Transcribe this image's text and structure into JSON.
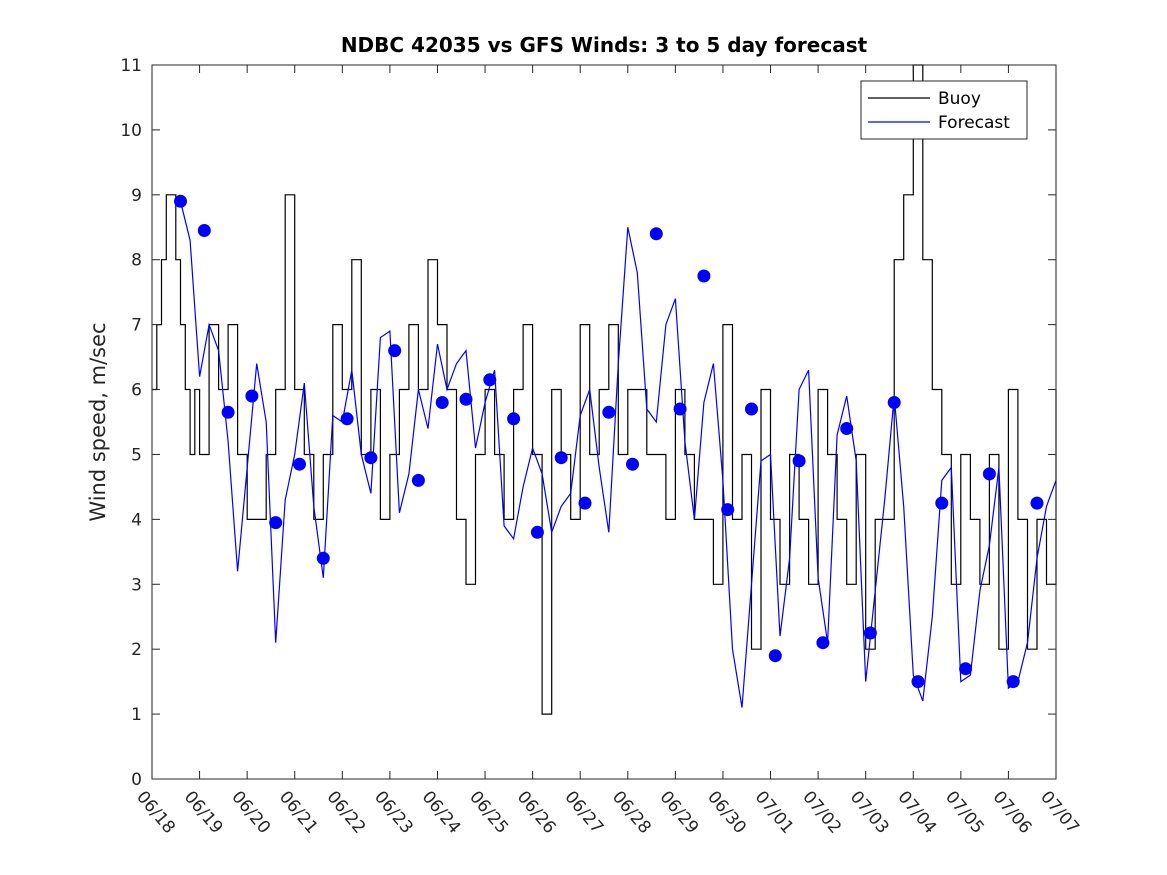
{
  "chart_data": {
    "type": "line",
    "title": "NDBC 42035 vs GFS Winds: 3 to 5 day forecast",
    "xlabel": "",
    "ylabel": "Wind speed, m/sec",
    "xlim": [
      0,
      19
    ],
    "ylim": [
      0,
      11
    ],
    "x_ticks": [
      0,
      1,
      2,
      3,
      4,
      5,
      6,
      7,
      8,
      9,
      10,
      11,
      12,
      13,
      14,
      15,
      16,
      17,
      18,
      19
    ],
    "x_tick_labels": [
      "06/18",
      "06/19",
      "06/20",
      "06/21",
      "06/22",
      "06/23",
      "06/24",
      "06/25",
      "06/26",
      "06/27",
      "06/28",
      "06/29",
      "06/30",
      "07/01",
      "07/02",
      "07/03",
      "07/04",
      "07/05",
      "07/06",
      "07/07"
    ],
    "y_ticks": [
      0,
      1,
      2,
      3,
      4,
      5,
      6,
      7,
      8,
      9,
      10,
      11
    ],
    "y_tick_labels": [
      "0",
      "1",
      "2",
      "3",
      "4",
      "5",
      "6",
      "7",
      "8",
      "9",
      "10",
      "11"
    ],
    "grid": false,
    "legend": {
      "placement": "top-right",
      "entries": [
        "Buoy",
        "Forecast"
      ]
    },
    "colors": {
      "buoy": "#000000",
      "forecast": "#0000ff",
      "markers": "#0000ff"
    },
    "series": [
      {
        "name": "Buoy",
        "x": [
          0.0,
          0.1,
          0.2,
          0.3,
          0.4,
          0.5,
          0.6,
          0.7,
          0.8,
          0.9,
          1.0,
          1.2,
          1.4,
          1.6,
          1.8,
          2.0,
          2.2,
          2.4,
          2.6,
          2.8,
          3.0,
          3.2,
          3.4,
          3.6,
          3.8,
          4.0,
          4.2,
          4.4,
          4.6,
          4.8,
          5.0,
          5.2,
          5.4,
          5.6,
          5.8,
          6.0,
          6.2,
          6.4,
          6.6,
          6.8,
          7.0,
          7.2,
          7.4,
          7.6,
          7.8,
          8.0,
          8.2,
          8.4,
          8.6,
          8.8,
          9.0,
          9.2,
          9.4,
          9.6,
          9.8,
          10.0,
          10.2,
          10.4,
          10.6,
          10.8,
          11.0,
          11.2,
          11.4,
          11.6,
          11.8,
          12.0,
          12.2,
          12.4,
          12.6,
          12.8,
          13.0,
          13.2,
          13.4,
          13.6,
          13.8,
          14.0,
          14.2,
          14.4,
          14.6,
          14.8,
          15.0,
          15.2,
          15.4,
          15.6,
          15.8,
          16.0,
          16.2,
          16.4,
          16.6,
          16.8,
          17.0,
          17.2,
          17.4,
          17.6,
          17.8,
          18.0,
          18.2,
          18.4,
          18.6,
          18.8,
          19.0
        ],
        "values": [
          6,
          7,
          8,
          9,
          9,
          8,
          7,
          6,
          5,
          6,
          5,
          7,
          6,
          7,
          5,
          4,
          4,
          5,
          6,
          9,
          6,
          5,
          4,
          5,
          7,
          6,
          8,
          5,
          6,
          4,
          5,
          6,
          7,
          6,
          8,
          7,
          6,
          4,
          3,
          5,
          6,
          5,
          4,
          6,
          7,
          5,
          1,
          6,
          5,
          4,
          7,
          5,
          6,
          7,
          5,
          6,
          6,
          5,
          5,
          4,
          6,
          5,
          4,
          4,
          3,
          7,
          4,
          5,
          2,
          6,
          4,
          3,
          5,
          4,
          3,
          6,
          5,
          4,
          3,
          5,
          2,
          4,
          4,
          8,
          9,
          11,
          8,
          6,
          5,
          3,
          5,
          4,
          3,
          5,
          2,
          6,
          4,
          2,
          4,
          3,
          6
        ]
      },
      {
        "name": "Forecast",
        "x": [
          0.6,
          0.8,
          1.0,
          1.2,
          1.4,
          1.6,
          1.8,
          2.0,
          2.2,
          2.4,
          2.6,
          2.8,
          3.0,
          3.2,
          3.4,
          3.6,
          3.8,
          4.0,
          4.2,
          4.4,
          4.6,
          4.8,
          5.0,
          5.2,
          5.4,
          5.6,
          5.8,
          6.0,
          6.2,
          6.4,
          6.6,
          6.8,
          7.0,
          7.2,
          7.4,
          7.6,
          7.8,
          8.0,
          8.2,
          8.4,
          8.6,
          8.8,
          9.0,
          9.2,
          9.4,
          9.6,
          9.8,
          10.0,
          10.2,
          10.4,
          10.6,
          10.8,
          11.0,
          11.2,
          11.4,
          11.6,
          11.8,
          12.0,
          12.2,
          12.4,
          12.6,
          12.8,
          13.0,
          13.2,
          13.4,
          13.6,
          13.8,
          14.0,
          14.2,
          14.4,
          14.6,
          14.8,
          15.0,
          15.2,
          15.4,
          15.6,
          15.8,
          16.0,
          16.2,
          16.4,
          16.6,
          16.8,
          17.0,
          17.2,
          17.4,
          17.6,
          17.8,
          18.0,
          18.2,
          18.4,
          18.6,
          18.8,
          19.0
        ],
        "values": [
          8.9,
          8.3,
          6.2,
          7.0,
          6.6,
          5.2,
          3.2,
          4.8,
          6.4,
          5.5,
          2.1,
          4.3,
          5.0,
          6.1,
          4.2,
          3.1,
          5.6,
          5.5,
          6.3,
          5.0,
          4.4,
          6.8,
          6.9,
          4.1,
          4.7,
          6.0,
          5.4,
          6.7,
          6.0,
          6.4,
          6.6,
          5.1,
          5.8,
          6.3,
          3.9,
          3.7,
          4.5,
          5.1,
          4.7,
          3.8,
          4.2,
          4.4,
          5.6,
          6.0,
          4.8,
          3.8,
          6.4,
          8.5,
          7.8,
          5.7,
          5.5,
          7.0,
          7.4,
          5.2,
          4.0,
          5.8,
          6.4,
          4.6,
          2.0,
          1.1,
          3.0,
          4.9,
          5.0,
          2.2,
          3.4,
          6.0,
          6.3,
          3.1,
          2.1,
          5.3,
          5.9,
          4.9,
          1.5,
          2.9,
          4.3,
          5.9,
          4.2,
          1.6,
          1.2,
          2.5,
          4.6,
          4.8,
          1.5,
          1.6,
          2.9,
          3.6,
          4.8,
          1.4,
          1.5,
          2.1,
          3.4,
          4.2,
          4.6
        ]
      },
      {
        "name": "",
        "type": "scatter",
        "x": [
          0.6,
          1.1,
          1.6,
          2.1,
          2.6,
          3.1,
          3.6,
          4.1,
          4.6,
          5.1,
          5.6,
          6.1,
          6.6,
          7.1,
          7.6,
          8.1,
          8.6,
          9.1,
          9.6,
          10.1,
          10.6,
          11.1,
          11.6,
          12.1,
          12.6,
          13.1,
          13.6,
          14.1,
          14.6,
          15.1,
          15.6,
          16.1,
          16.6,
          17.1,
          17.6,
          18.1,
          18.6
        ],
        "values": [
          8.9,
          8.45,
          5.65,
          5.9,
          3.95,
          4.85,
          3.4,
          5.55,
          4.95,
          6.6,
          4.6,
          5.8,
          5.85,
          6.15,
          5.55,
          3.8,
          4.95,
          4.25,
          5.65,
          4.85,
          8.4,
          5.7,
          7.75,
          4.15,
          5.7,
          1.9,
          4.9,
          2.1,
          5.4,
          2.25,
          5.8,
          1.5,
          4.25,
          1.7,
          4.7,
          1.5,
          4.25
        ]
      }
    ]
  }
}
